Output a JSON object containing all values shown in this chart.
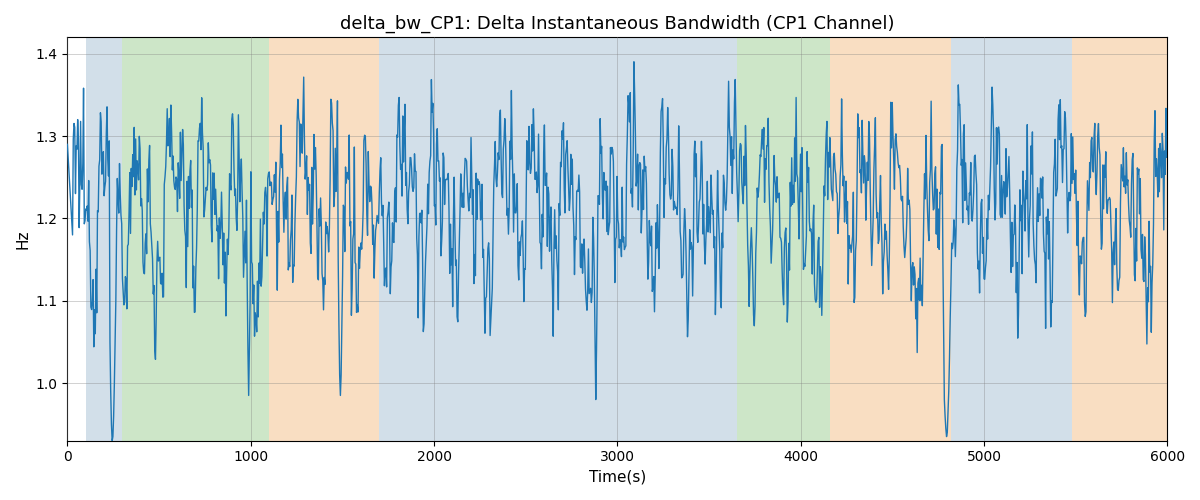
{
  "title": "delta_bw_CP1: Delta Instantaneous Bandwidth (CP1 Channel)",
  "xlabel": "Time(s)",
  "ylabel": "Hz",
  "xlim": [
    0,
    6000
  ],
  "ylim": [
    0.93,
    1.42
  ],
  "yticks": [
    1.0,
    1.1,
    1.2,
    1.3,
    1.4
  ],
  "xticks": [
    0,
    1000,
    2000,
    3000,
    4000,
    5000,
    6000
  ],
  "line_color": "#1f77b4",
  "line_width": 1.0,
  "bg_bands": [
    {
      "xmin": 100,
      "xmax": 300,
      "color": "#aec6d8",
      "alpha": 0.55
    },
    {
      "xmin": 300,
      "xmax": 1100,
      "color": "#90c985",
      "alpha": 0.45
    },
    {
      "xmin": 1100,
      "xmax": 1700,
      "color": "#f5c89a",
      "alpha": 0.6
    },
    {
      "xmin": 1700,
      "xmax": 3480,
      "color": "#aec6d8",
      "alpha": 0.55
    },
    {
      "xmin": 3480,
      "xmax": 3650,
      "color": "#aec6d8",
      "alpha": 0.55
    },
    {
      "xmin": 3650,
      "xmax": 4160,
      "color": "#90c985",
      "alpha": 0.45
    },
    {
      "xmin": 4160,
      "xmax": 4820,
      "color": "#f5c89a",
      "alpha": 0.6
    },
    {
      "xmin": 4820,
      "xmax": 5480,
      "color": "#aec6d8",
      "alpha": 0.55
    },
    {
      "xmin": 5480,
      "xmax": 6000,
      "color": "#f5c89a",
      "alpha": 0.6
    }
  ],
  "title_fontsize": 13,
  "label_fontsize": 11,
  "tick_fontsize": 10
}
